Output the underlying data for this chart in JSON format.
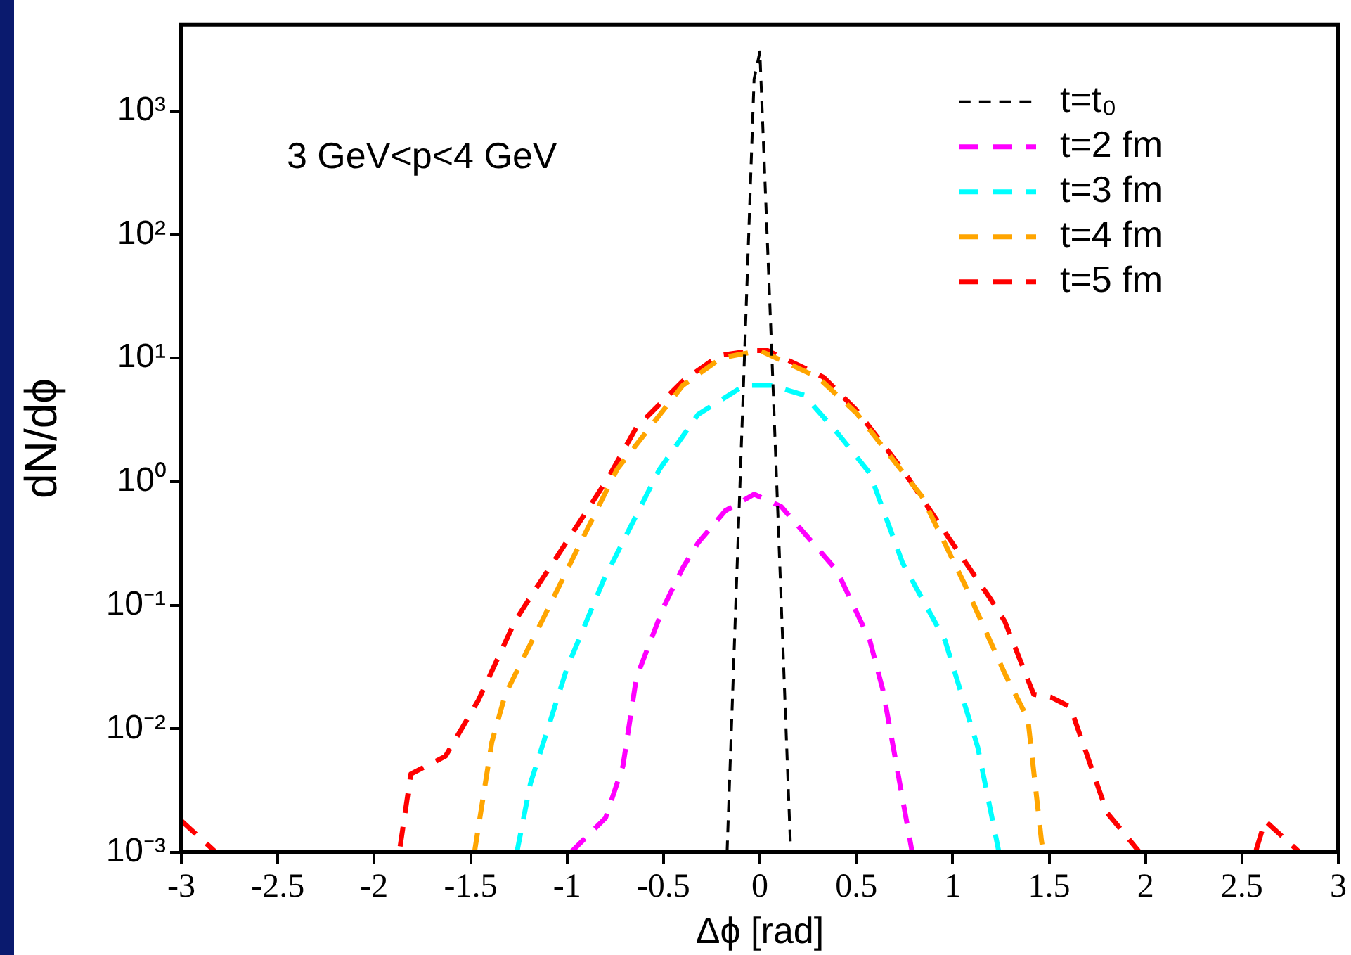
{
  "chart_data": {
    "type": "line",
    "xlabel": "Δϕ [rad]",
    "ylabel": "dN/dϕ",
    "annotations": [
      "3 GeV<p<4 GeV"
    ],
    "xlim": [
      -3,
      3
    ],
    "xticks": [
      -3,
      -2.5,
      -2,
      -1.5,
      -1,
      -0.5,
      0,
      0.5,
      1,
      1.5,
      2,
      2.5,
      3
    ],
    "ylim": [
      0.001,
      5000
    ],
    "yticks": [
      {
        "value": 0.001,
        "label": "10⁻³"
      },
      {
        "value": 0.01,
        "label": "10⁻²"
      },
      {
        "value": 0.1,
        "label": "10⁻¹"
      },
      {
        "value": 1,
        "label": "10⁰"
      },
      {
        "value": 10,
        "label": "10¹"
      },
      {
        "value": 100,
        "label": "10²"
      },
      {
        "value": 1000,
        "label": "10³"
      }
    ],
    "log": "y",
    "grid": false,
    "legend": "top right",
    "marker": "none",
    "line_style": "dashed",
    "series": [
      {
        "name": "t=t₀",
        "color": "#000000",
        "x": [
          -0.17,
          -0.08,
          -0.03,
          0,
          0.06,
          0.16
        ],
        "values": [
          0.001,
          10,
          1800,
          3000,
          13,
          0.001
        ]
      },
      {
        "name": "t=2 fm",
        "color": "#ff00ff",
        "x": [
          -0.98,
          -0.8,
          -0.71,
          -0.64,
          -0.5,
          -0.4,
          -0.32,
          -0.18,
          -0.03,
          0.11,
          0.4,
          0.57,
          0.64,
          0.79
        ],
        "values": [
          0.001,
          0.0019,
          0.005,
          0.026,
          0.096,
          0.2,
          0.32,
          0.58,
          0.79,
          0.63,
          0.19,
          0.052,
          0.02,
          0.001
        ]
      },
      {
        "name": "t=3 fm",
        "color": "#00ffff",
        "x": [
          -1.26,
          -1.19,
          -1,
          -0.81,
          -0.52,
          -0.32,
          -0.08,
          0.06,
          0.23,
          0.4,
          0.57,
          0.74,
          0.96,
          1.13,
          1.24
        ],
        "values": [
          0.001,
          0.0036,
          0.031,
          0.16,
          1.26,
          3.5,
          6,
          6,
          5,
          2.5,
          1.17,
          0.22,
          0.052,
          0.0071,
          0.001
        ]
      },
      {
        "name": "t=4 fm",
        "color": "#ffa500",
        "x": [
          -1.48,
          -1.39,
          -1.32,
          -1.12,
          -0.93,
          -0.74,
          -0.4,
          -0.2,
          0,
          0.3,
          0.5,
          0.74,
          0.84,
          1.06,
          1.27,
          1.39,
          1.46,
          1.47
        ],
        "values": [
          0.001,
          0.0078,
          0.019,
          0.08,
          0.32,
          1.26,
          6,
          10,
          11.5,
          7,
          3.6,
          1.2,
          0.76,
          0.15,
          0.028,
          0.012,
          0.00126,
          0.001
        ]
      },
      {
        "name": "t=5 fm",
        "color": "#ff0000",
        "x": [
          -3,
          -2.82,
          -1.87,
          -1.81,
          -1.63,
          -1.46,
          -1.27,
          -1.17,
          -1.05,
          -0.79,
          -0.64,
          -0.4,
          -0.21,
          -0.03,
          0.04,
          0.33,
          0.5,
          0.74,
          0.98,
          1.2,
          1.27,
          1.42,
          1.51,
          1.61,
          1.8,
          1.97,
          2.57,
          2.62,
          2.8
        ],
        "values": [
          0.0018,
          0.001,
          0.001,
          0.0043,
          0.006,
          0.017,
          0.074,
          0.13,
          0.25,
          1.05,
          2.75,
          6.5,
          10.5,
          11.5,
          11.5,
          7,
          3.8,
          1.25,
          0.35,
          0.11,
          0.074,
          0.019,
          0.018,
          0.015,
          0.0021,
          0.001,
          0.001,
          0.0018,
          0.001
        ]
      }
    ]
  }
}
